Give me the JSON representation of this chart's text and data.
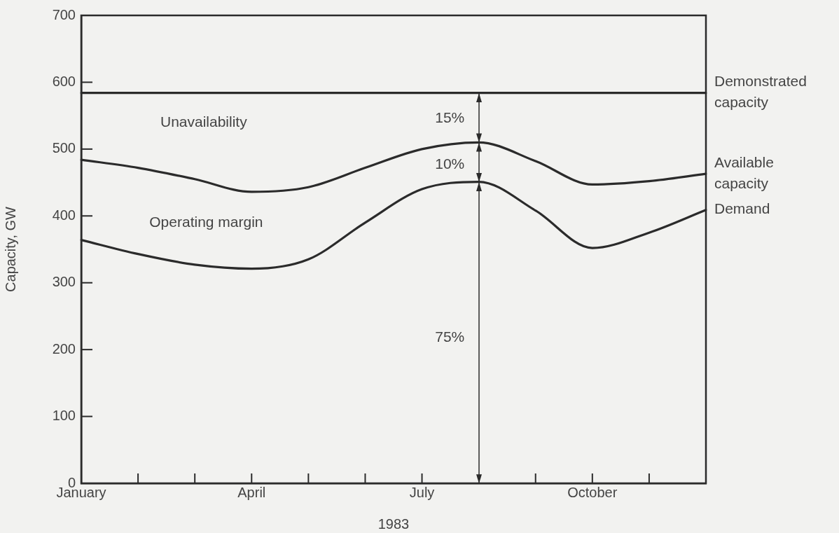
{
  "chart_data": {
    "type": "line",
    "xlabel": "1983",
    "ylabel": "Capacity, GW",
    "categories": [
      "January",
      null,
      null,
      "April",
      null,
      null,
      "July",
      null,
      null,
      "October",
      null,
      null
    ],
    "ylim": [
      0,
      700
    ],
    "yticks": [
      0,
      100,
      200,
      300,
      400,
      500,
      600,
      700
    ],
    "grid": false,
    "legend": false,
    "marker": "none",
    "line_style": "solid",
    "series": [
      {
        "name": "Demonstrated capacity",
        "color": "#2b2b2b",
        "values": [
          584,
          584,
          584,
          584,
          584,
          584,
          584,
          584,
          584,
          584,
          584,
          584
        ]
      },
      {
        "name": "Available capacity",
        "color": "#2b2b2b",
        "values": [
          484,
          472,
          455,
          436,
          443,
          472,
          500,
          510,
          482,
          447,
          452,
          463
        ]
      },
      {
        "name": "Demand",
        "color": "#2b2b2b",
        "values": [
          364,
          343,
          327,
          321,
          335,
          390,
          440,
          451,
          408,
          352,
          375,
          409
        ]
      }
    ],
    "annotations": [
      "Unavailability",
      "Operating margin",
      "15%",
      "10%",
      "75%"
    ]
  }
}
